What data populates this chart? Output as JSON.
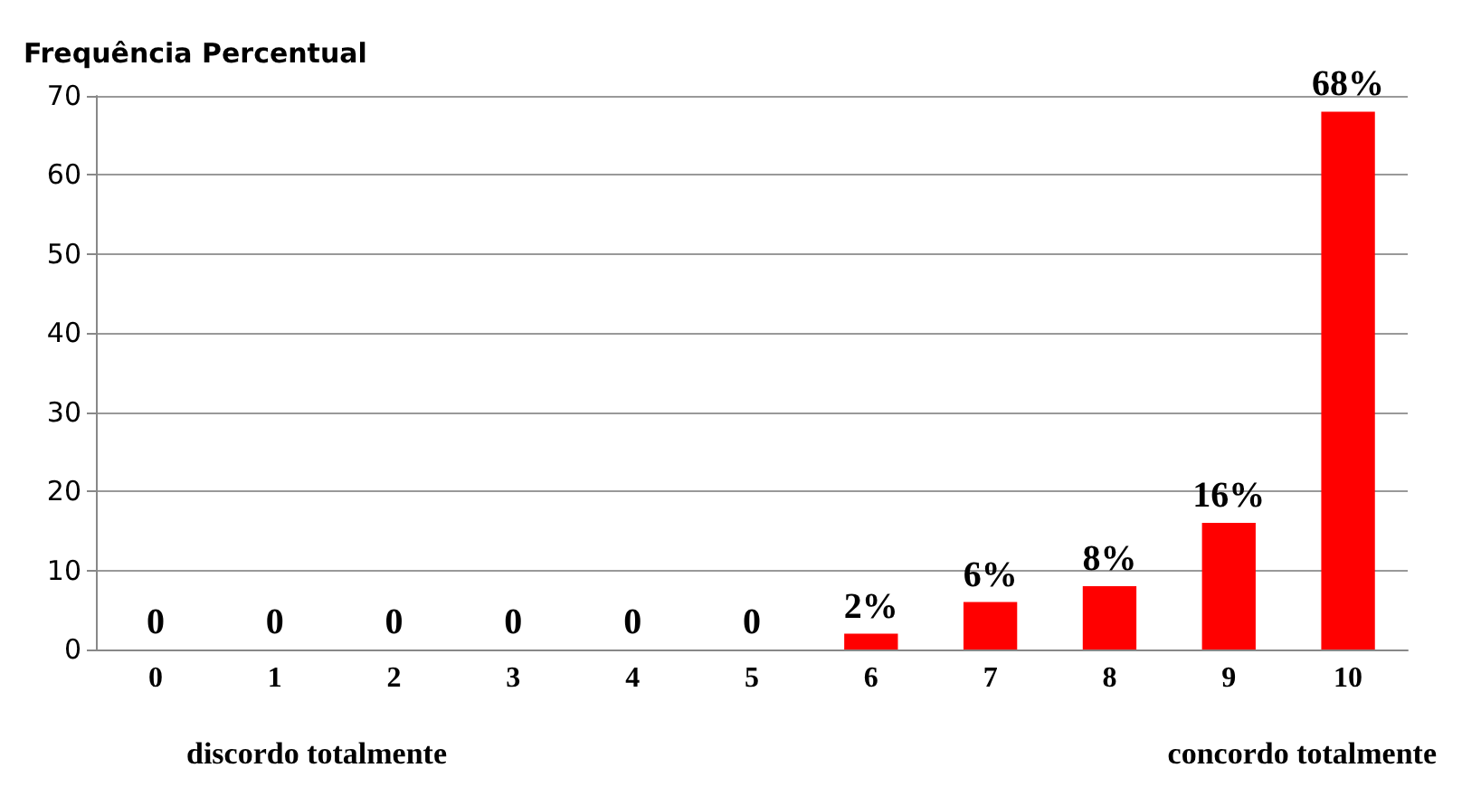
{
  "chart_data": {
    "type": "bar",
    "ylabel": "Frequência Percentual",
    "categories": [
      "0",
      "1",
      "2",
      "3",
      "4",
      "5",
      "6",
      "7",
      "8",
      "9",
      "10"
    ],
    "values": [
      0,
      0,
      0,
      0,
      0,
      0,
      2,
      6,
      8,
      16,
      68
    ],
    "value_labels": [
      "0",
      "0",
      "0",
      "0",
      "0",
      "0",
      "2%",
      "6%",
      "8%",
      "16%",
      "68%"
    ],
    "color": "#ff0000",
    "ylim": [
      0,
      70
    ],
    "yticks": [
      0,
      10,
      20,
      30,
      40,
      50,
      60,
      70
    ],
    "grid": "y",
    "annotations": [
      "discordo totalmente",
      "concordo totalmente"
    ]
  }
}
